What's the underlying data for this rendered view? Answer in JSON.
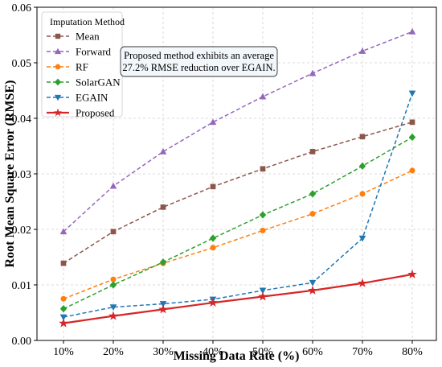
{
  "chart_data": {
    "type": "line",
    "xlabel": "Missing Data Rate (%)",
    "ylabel": "Root Mean Square Error (RMSE)",
    "categories": [
      "10%",
      "20%",
      "30%",
      "40%",
      "50%",
      "60%",
      "70%",
      "80%"
    ],
    "ylim": [
      0.0,
      0.06
    ],
    "yticks": [
      "0.00",
      "0.01",
      "0.02",
      "0.03",
      "0.04",
      "0.05",
      "0.06"
    ],
    "grid": true,
    "legend": {
      "title": "Imputation Method",
      "placement": "upper-left"
    },
    "annotation": {
      "lines": [
        "Proposed method exhibits an average",
        "27.2% RMSE reduction over EGAIN."
      ]
    },
    "series": [
      {
        "name": "Mean",
        "color": "#8c564b",
        "marker": "square",
        "dashed": true,
        "values": [
          0.0139,
          0.0196,
          0.024,
          0.0277,
          0.0309,
          0.034,
          0.0367,
          0.0393
        ]
      },
      {
        "name": "Forward",
        "color": "#9467bd",
        "marker": "triangle-up",
        "dashed": true,
        "values": [
          0.0196,
          0.0278,
          0.034,
          0.0393,
          0.0439,
          0.0481,
          0.0521,
          0.0556
        ]
      },
      {
        "name": "RF",
        "color": "#ff7f0e",
        "marker": "circle",
        "dashed": true,
        "values": [
          0.0075,
          0.011,
          0.0139,
          0.0167,
          0.0198,
          0.0228,
          0.0264,
          0.0306
        ]
      },
      {
        "name": "SolarGAN",
        "color": "#2ca02c",
        "marker": "diamond",
        "dashed": true,
        "values": [
          0.0057,
          0.01,
          0.0141,
          0.0184,
          0.0226,
          0.0264,
          0.0314,
          0.0366
        ]
      },
      {
        "name": "EGAIN",
        "color": "#1f77b4",
        "marker": "triangle-down",
        "dashed": true,
        "values": [
          0.0042,
          0.006,
          0.0066,
          0.0074,
          0.009,
          0.0104,
          0.0184,
          0.0445
        ]
      },
      {
        "name": "Proposed",
        "color": "#d62728",
        "marker": "star",
        "dashed": false,
        "values": [
          0.0031,
          0.0044,
          0.0056,
          0.0068,
          0.0079,
          0.009,
          0.0103,
          0.0119
        ]
      }
    ]
  }
}
